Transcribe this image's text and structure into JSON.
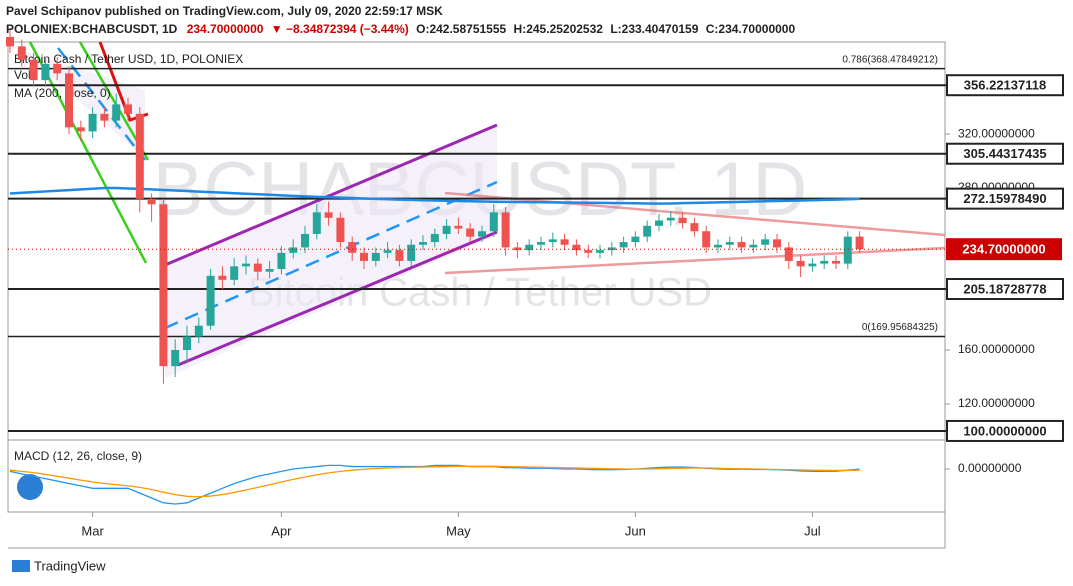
{
  "header": {
    "author_line": "Pavel Schipanov published on TradingView.com, July 09, 2020 22:59:17 MSK",
    "symbol": "POLONIEX:BCHABCUSDT, 1D",
    "price": "234.70000000",
    "change": "▼ −8.34872394 (−3.44%)",
    "open": "O:242.58751555",
    "high": "H:245.25202532",
    "low": "L:233.40470159",
    "close": "C:234.70000000"
  },
  "footer": {
    "brand": "TradingView"
  },
  "chart_data": {
    "type": "candlestick",
    "legend": {
      "name": "Bitcoin Cash / Tether USD, 1D, POLONIEX",
      "volume": "Vol",
      "ma": "MA (200, close, 0)",
      "macd": "MACD (12, 26, close, 9)"
    },
    "watermark": {
      "symbol": "BCHABCUSDT, 1D",
      "name": "Bitcoin Cash / Tether USD"
    },
    "categories": [
      null,
      null,
      null,
      null,
      null,
      null,
      null,
      "Mar",
      null,
      null,
      null,
      null,
      null,
      null,
      null,
      null,
      null,
      null,
      null,
      null,
      null,
      null,
      null,
      "Apr",
      null,
      null,
      null,
      null,
      null,
      null,
      null,
      null,
      null,
      null,
      null,
      null,
      null,
      null,
      "May",
      null,
      null,
      null,
      null,
      null,
      null,
      null,
      null,
      null,
      null,
      null,
      null,
      null,
      null,
      "Jun",
      null,
      null,
      null,
      null,
      null,
      null,
      null,
      null,
      null,
      null,
      null,
      null,
      null,
      null,
      "Jul",
      null,
      null,
      null,
      null
    ],
    "open": [
      392,
      385,
      375,
      360,
      372,
      365,
      325,
      322,
      335,
      330,
      342,
      335,
      272,
      268,
      148,
      160,
      170,
      178,
      215,
      212,
      222,
      224,
      218,
      220,
      232,
      236,
      246,
      262,
      258,
      240,
      232,
      226,
      232,
      234,
      226,
      238,
      240,
      246,
      252,
      250,
      244,
      248,
      262,
      236,
      234,
      238,
      240,
      242,
      238,
      234,
      232,
      234,
      236,
      240,
      244,
      252,
      256,
      258,
      254,
      248,
      236,
      238,
      240,
      236,
      238,
      242,
      236,
      226,
      222,
      224,
      226,
      224,
      244
    ],
    "high": [
      397,
      390,
      380,
      377,
      377,
      370,
      330,
      340,
      340,
      350,
      347,
      340,
      276,
      272,
      168,
      178,
      184,
      220,
      222,
      228,
      230,
      228,
      226,
      237,
      242,
      252,
      268,
      270,
      262,
      244,
      236,
      236,
      240,
      238,
      242,
      245,
      250,
      257,
      258,
      254,
      252,
      268,
      266,
      240,
      242,
      244,
      247,
      246,
      242,
      238,
      238,
      240,
      244,
      248,
      256,
      261,
      263,
      262,
      258,
      252,
      242,
      244,
      244,
      242,
      246,
      246,
      240,
      230,
      228,
      230,
      230,
      248,
      248
    ],
    "low": [
      380,
      370,
      355,
      355,
      360,
      320,
      315,
      317,
      325,
      325,
      330,
      262,
      255,
      135,
      140,
      150,
      165,
      175,
      205,
      208,
      216,
      212,
      213,
      216,
      228,
      232,
      242,
      252,
      236,
      226,
      220,
      222,
      228,
      222,
      222,
      234,
      236,
      242,
      246,
      240,
      240,
      244,
      230,
      228,
      230,
      234,
      236,
      234,
      230,
      228,
      228,
      230,
      232,
      236,
      240,
      248,
      252,
      250,
      244,
      232,
      232,
      234,
      232,
      232,
      234,
      232,
      220,
      214,
      218,
      220,
      220,
      220,
      232
    ],
    "close": [
      385,
      375,
      360,
      372,
      365,
      325,
      322,
      335,
      330,
      342,
      335,
      272,
      268,
      148,
      160,
      170,
      178,
      215,
      212,
      222,
      224,
      218,
      220,
      232,
      236,
      246,
      262,
      258,
      240,
      232,
      226,
      232,
      234,
      226,
      238,
      240,
      246,
      252,
      250,
      244,
      248,
      262,
      236,
      234,
      238,
      240,
      242,
      238,
      234,
      232,
      234,
      236,
      240,
      244,
      252,
      256,
      258,
      254,
      248,
      236,
      238,
      240,
      236,
      238,
      242,
      236,
      226,
      222,
      224,
      226,
      224,
      244,
      234.7
    ],
    "up_color": "#26a69a",
    "down_color": "#ef5350",
    "ma": {
      "color": "#1e88e5",
      "values": [
        276,
        276.5,
        277,
        277.5,
        278,
        278.5,
        279,
        279.5,
        280,
        280,
        279.7,
        279.4,
        279,
        278.6,
        278.2,
        277.8,
        277.4,
        277,
        276.6,
        276.2,
        275.8,
        275.4,
        275,
        274.6,
        274.2,
        273.8,
        273.5,
        273.2,
        272.9,
        272.6,
        272.3,
        272,
        271.7,
        271.4,
        271.2,
        271,
        270.8,
        270.6,
        270.4,
        270.2,
        270,
        269.9,
        269.8,
        269.7,
        269.6,
        269.5,
        269.4,
        269.3,
        269.2,
        269.1,
        269,
        268.9,
        268.8,
        268.7,
        268.6,
        268.5,
        268.6,
        268.8,
        269,
        269.2,
        269.4,
        269.6,
        269.8,
        270,
        270.2,
        270.4,
        270.6,
        270.8,
        271,
        271.2,
        271.4,
        271.7,
        272
      ]
    },
    "ylim": [
      93.3,
      388.24
    ],
    "yticks": [
      {
        "value": 320,
        "label": "320.00000000"
      },
      {
        "value": 280,
        "label": "280.00000000"
      },
      {
        "value": 160,
        "label": "160.00000000"
      },
      {
        "value": 120,
        "label": "120.00000000"
      }
    ],
    "levels": [
      356.22137118,
      305.44317435,
      {
        "value": 272.1597849,
        "label": "272.15978490"
      },
      205.18728778,
      {
        "value": 100,
        "label": "100.00000000"
      }
    ],
    "last_price": {
      "value": 234.7,
      "label": "234.70000000",
      "color": "#cc0000"
    },
    "fib": [
      {
        "value": 368.47849212,
        "label": "0.786(368.47849212)"
      },
      {
        "value": 169.95684325,
        "label": "0(169.95684325)"
      }
    ],
    "macd": {
      "ylim": [
        -17.8,
        12
      ],
      "yticks": [
        {
          "value": 0,
          "label": "0.00000000"
        }
      ],
      "series": [
        {
          "color": "#2196f3",
          "values": [
            -1,
            -2,
            -3,
            -4,
            -5,
            -6,
            -7,
            -8,
            -8,
            -8,
            -8,
            -10,
            -12,
            -14,
            -14.5,
            -14,
            -12,
            -10,
            -8,
            -6,
            -4.5,
            -3,
            -2,
            -1,
            0,
            0.5,
            1,
            1.5,
            1.5,
            1,
            1,
            1,
            1,
            1,
            1,
            1,
            1.5,
            1.5,
            1.5,
            1,
            1,
            1,
            0.5,
            0.5,
            0.3,
            0.3,
            0.2,
            0,
            0,
            -0.2,
            -0.3,
            -0.3,
            -0.2,
            0,
            0.3,
            0.6,
            0.8,
            0.8,
            0.6,
            0.3,
            0,
            -0.1,
            -0.1,
            -0.2,
            -0.2,
            -0.3,
            -0.5,
            -0.8,
            -1,
            -1,
            -0.9,
            -0.5,
            0
          ]
        },
        {
          "color": "#ff9800",
          "values": [
            -0.5,
            -1,
            -1.5,
            -2.2,
            -3,
            -3.8,
            -4.6,
            -5.4,
            -6,
            -6.5,
            -7,
            -7.6,
            -8.5,
            -9.6,
            -10.6,
            -11.3,
            -11.5,
            -11.2,
            -10.6,
            -9.7,
            -8.7,
            -7.6,
            -6.5,
            -5.4,
            -4.3,
            -3.3,
            -2.4,
            -1.6,
            -1,
            -0.5,
            -0.1,
            0.2,
            0.4,
            0.6,
            0.7,
            0.8,
            0.9,
            1,
            1.1,
            1.1,
            1.1,
            1.1,
            1,
            0.9,
            0.8,
            0.7,
            0.6,
            0.5,
            0.4,
            0.3,
            0.2,
            0.1,
            0,
            0,
            0,
            0.1,
            0.2,
            0.3,
            0.4,
            0.4,
            0.3,
            0.2,
            0.1,
            0,
            -0.1,
            -0.2,
            -0.3,
            -0.4,
            -0.5,
            -0.6,
            -0.6,
            -0.6,
            -0.5
          ]
        }
      ]
    }
  }
}
